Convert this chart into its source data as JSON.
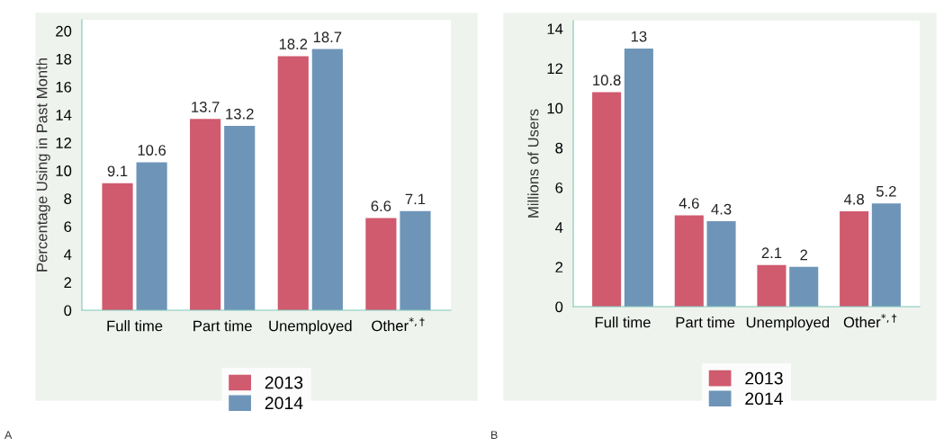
{
  "chart_data": [
    {
      "type": "bar",
      "ylabel": "Percentage Using in Past Month",
      "categories": [
        "Full time",
        "Part time",
        "Unemployed",
        "Other$^{*,†}$"
      ],
      "series": [
        {
          "name": "2013",
          "color": "#d05a6e",
          "values": [
            9.1,
            13.7,
            18.2,
            6.6
          ]
        },
        {
          "name": "2014",
          "color": "#6e95b8",
          "values": [
            10.6,
            13.2,
            18.7,
            7.1
          ]
        }
      ],
      "ylim": [
        0,
        20.8
      ],
      "yticks": [
        0,
        2,
        4,
        6,
        8,
        10,
        12,
        14,
        16,
        18,
        20
      ],
      "grid": false,
      "legend": "bottom",
      "data_labels": true,
      "annotations": [
        "A"
      ]
    },
    {
      "type": "bar",
      "ylabel": "Millions of Users",
      "categories": [
        "Full time",
        "Part time",
        "Unemployed",
        "Other$^{*,†}$"
      ],
      "series": [
        {
          "name": "2013",
          "color": "#d05a6e",
          "values": [
            10.8,
            4.6,
            2.1,
            4.8
          ]
        },
        {
          "name": "2014",
          "color": "#6e95b8",
          "values": [
            13,
            4.3,
            2,
            5.2
          ]
        }
      ],
      "ylim": [
        0,
        14.4
      ],
      "yticks": [
        0,
        2,
        4,
        6,
        8,
        10,
        12,
        14
      ],
      "grid": false,
      "legend": "bottom",
      "data_labels": true,
      "annotations": [
        "B"
      ]
    }
  ]
}
